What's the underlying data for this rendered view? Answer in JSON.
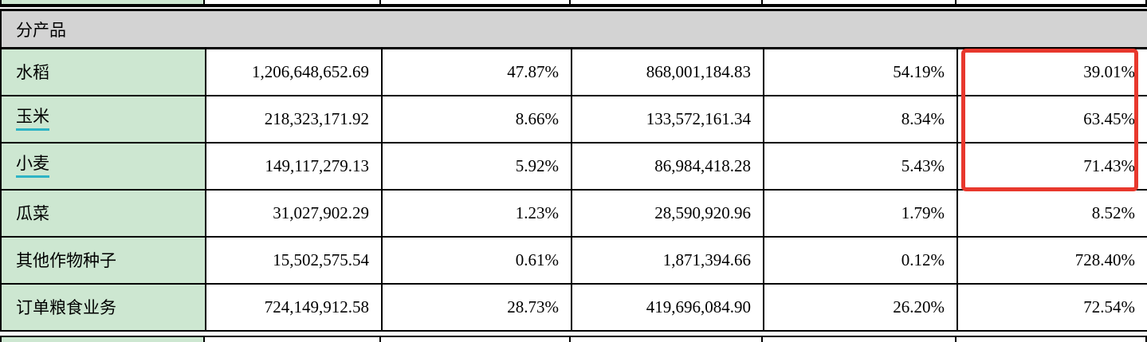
{
  "table": {
    "section_header": "分产品",
    "rows": [
      {
        "name": "水稻",
        "underlined": false,
        "highlighted": true,
        "values": [
          "1,206,648,652.69",
          "47.87%",
          "868,001,184.83",
          "54.19%",
          "39.01%"
        ]
      },
      {
        "name": "玉米",
        "underlined": true,
        "highlighted": true,
        "values": [
          "218,323,171.92",
          "8.66%",
          "133,572,161.34",
          "8.34%",
          "63.45%"
        ]
      },
      {
        "name": "小麦",
        "underlined": true,
        "highlighted": true,
        "values": [
          "149,117,279.13",
          "5.92%",
          "86,984,418.28",
          "5.43%",
          "71.43%"
        ]
      },
      {
        "name": "瓜菜",
        "underlined": false,
        "highlighted": false,
        "values": [
          "31,027,902.29",
          "1.23%",
          "28,590,920.96",
          "1.79%",
          "8.52%"
        ]
      },
      {
        "name": "其他作物种子",
        "underlined": false,
        "highlighted": false,
        "values": [
          "15,502,575.54",
          "0.61%",
          "1,871,394.66",
          "0.12%",
          "728.40%"
        ]
      },
      {
        "name": "订单粮食业务",
        "underlined": false,
        "highlighted": false,
        "values": [
          "724,149,912.58",
          "28.73%",
          "419,696,084.90",
          "26.20%",
          "72.54%"
        ]
      }
    ],
    "annotation": {
      "type": "red-highlight-box",
      "highlighted_values": [
        "39.01%",
        "63.45%",
        "71.43%"
      ]
    },
    "colors": {
      "section_header_bg": "#d3d3d3",
      "product_col_bg": "#cde7d1",
      "grid_border": "#000000",
      "underline": "#2eb4c5",
      "highlight_box": "#e8382d"
    }
  }
}
